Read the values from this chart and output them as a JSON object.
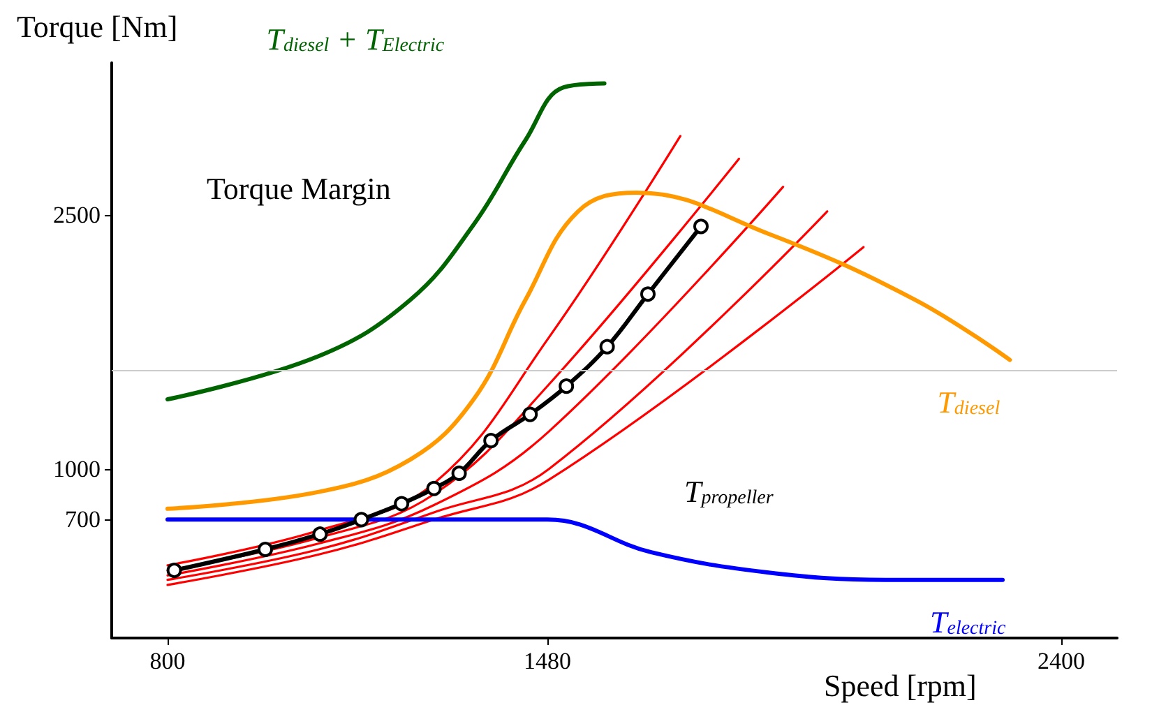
{
  "chart_data": {
    "type": "line",
    "xlabel": "Speed [rpm]",
    "ylabel": "Torque [Nm]",
    "xlim": [
      700,
      2500
    ],
    "xticks": [
      800,
      1480,
      2400
    ],
    "ylim": [
      0,
      3400
    ],
    "yticks": [
      700,
      1000,
      2500
    ],
    "grid": false,
    "legend": false,
    "annotations": [
      "Torque Margin"
    ],
    "ref_lines": [
      {
        "axis": "y",
        "value": 1580,
        "color": "#cccccc"
      }
    ],
    "series": [
      {
        "color": "#ff0000",
        "x": [
          800,
          1071,
          1277,
          1483,
          1718
        ],
        "values": [
          430,
          636,
          914,
          1778,
          2967
        ],
        "marker": "none"
      },
      {
        "color": "#ff0000",
        "x": [
          800,
          1071,
          1277,
          1483,
          1823
        ],
        "values": [
          400,
          593,
          850,
          1500,
          2833
        ],
        "marker": "none"
      },
      {
        "color": "#ff0000",
        "x": [
          800,
          1071,
          1277,
          1483,
          1902
        ],
        "values": [
          370,
          559,
          786,
          1222,
          2667
        ],
        "marker": "none"
      },
      {
        "color": "#ff0000",
        "x": [
          800,
          1071,
          1277,
          1483,
          1981
        ],
        "values": [
          344,
          524,
          743,
          1000,
          2522
        ],
        "marker": "none"
      },
      {
        "color": "#ff0000",
        "x": [
          800,
          1071,
          1277,
          1483,
          2046
        ],
        "values": [
          314,
          494,
          700,
          936,
          2311
        ],
        "marker": "none"
      },
      {
        "name": "T$_{diesel}$ + T$_{Electric}$",
        "color": "#006400",
        "x": [
          800,
          1071,
          1235,
          1348,
          1441,
          1509,
          1582
        ],
        "values": [
          1411,
          1667,
          2000,
          2444,
          2944,
          3255,
          3278
        ],
        "marker": "none"
      },
      {
        "name": "T$_{diesel}$",
        "color": "#ff9900",
        "x": [
          800,
          1071,
          1235,
          1348,
          1441,
          1535,
          1640,
          1876,
          2138,
          2308
        ],
        "values": [
          764,
          864,
          1056,
          1411,
          2000,
          2522,
          2633,
          2389,
          2000,
          1644
        ],
        "marker": "none"
      },
      {
        "name": "T$_{electric}$",
        "color": "#0000ff",
        "x": [
          800,
          1480,
          1666,
          1876,
          2085,
          2295
        ],
        "values": [
          700,
          700,
          507,
          387,
          344,
          344
        ],
        "marker": "none"
      },
      {
        "name": "T$_{propeller}$",
        "color": "#000000",
        "x": [
          812,
          975,
          1073,
          1147,
          1219,
          1277,
          1322,
          1379,
          1449,
          1514,
          1587,
          1660,
          1755
        ],
        "values": [
          400,
          524,
          614,
          700,
          794,
          884,
          974,
          1167,
          1322,
          1489,
          1722,
          2033,
          2433
        ],
        "marker": "circle"
      }
    ]
  }
}
